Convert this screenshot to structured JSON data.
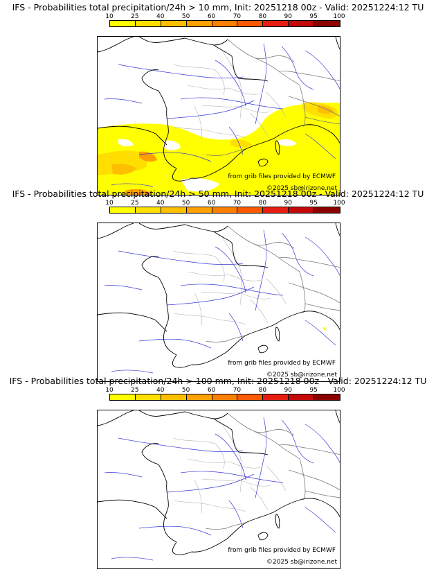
{
  "colorbar": {
    "ticks": [
      "10",
      "25",
      "40",
      "50",
      "60",
      "70",
      "80",
      "90",
      "95",
      "100"
    ],
    "colors": [
      "#ffff00",
      "#fedf00",
      "#fdbf00",
      "#fda000",
      "#fc8000",
      "#fb5a00",
      "#e61e12",
      "#c20a0a",
      "#8b0000"
    ]
  },
  "panels": [
    {
      "title": "IFS - Probabilities total precipitation/24h > 10 mm, Init: 20251218 00z - Valid: 20251224:12 TU",
      "threshold_mm": 10,
      "credit_source": "from grib files provided by ECMWF",
      "credit_site": "©2025 sb@irizone.net",
      "field": "widespread"
    },
    {
      "title": "IFS - Probabilities total precipitation/24h > 50 mm, Init: 20251218 00z - Valid: 20251224:12 TU",
      "threshold_mm": 50,
      "credit_source": "from grib files provided by ECMWF",
      "credit_site": "©2025 sb@irizone.net",
      "field": "trace"
    },
    {
      "title": "IFS - Probabilities total precipitation/24h > 100 mm, Init: 20251218 00z - Valid: 20251224:12 TU",
      "threshold_mm": 100,
      "credit_source": "from grib files provided by ECMWF",
      "credit_site": "©2025 sb@irizone.net",
      "field": "none"
    }
  ]
}
